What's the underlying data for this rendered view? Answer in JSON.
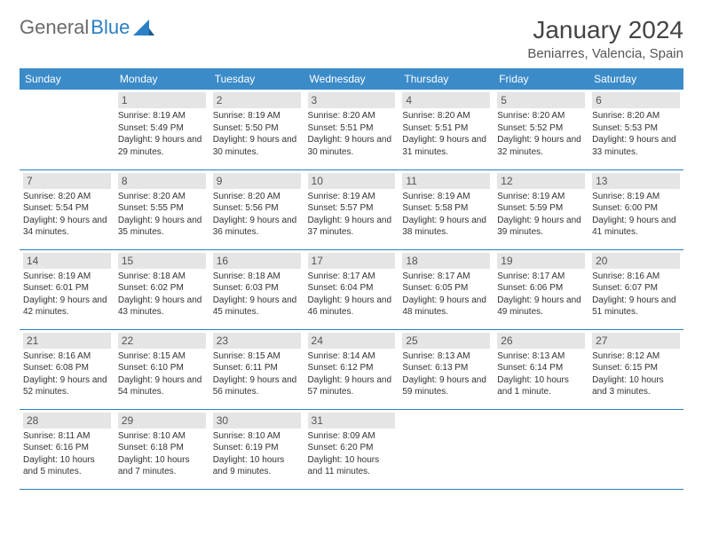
{
  "logo": {
    "text1": "General",
    "text2": "Blue"
  },
  "title": "January 2024",
  "location": "Beniarres, Valencia, Spain",
  "colors": {
    "header_bg": "#3b8bc9",
    "header_text": "#ffffff",
    "row_border": "#2b7fc4",
    "daynum_bg": "#e5e5e5",
    "logo_gray": "#6b6b6b",
    "logo_blue": "#2b7fc4"
  },
  "day_headers": [
    "Sunday",
    "Monday",
    "Tuesday",
    "Wednesday",
    "Thursday",
    "Friday",
    "Saturday"
  ],
  "weeks": [
    [
      null,
      {
        "n": "1",
        "sr": "8:19 AM",
        "ss": "5:49 PM",
        "dl": "9 hours and 29 minutes."
      },
      {
        "n": "2",
        "sr": "8:19 AM",
        "ss": "5:50 PM",
        "dl": "9 hours and 30 minutes."
      },
      {
        "n": "3",
        "sr": "8:20 AM",
        "ss": "5:51 PM",
        "dl": "9 hours and 30 minutes."
      },
      {
        "n": "4",
        "sr": "8:20 AM",
        "ss": "5:51 PM",
        "dl": "9 hours and 31 minutes."
      },
      {
        "n": "5",
        "sr": "8:20 AM",
        "ss": "5:52 PM",
        "dl": "9 hours and 32 minutes."
      },
      {
        "n": "6",
        "sr": "8:20 AM",
        "ss": "5:53 PM",
        "dl": "9 hours and 33 minutes."
      }
    ],
    [
      {
        "n": "7",
        "sr": "8:20 AM",
        "ss": "5:54 PM",
        "dl": "9 hours and 34 minutes."
      },
      {
        "n": "8",
        "sr": "8:20 AM",
        "ss": "5:55 PM",
        "dl": "9 hours and 35 minutes."
      },
      {
        "n": "9",
        "sr": "8:20 AM",
        "ss": "5:56 PM",
        "dl": "9 hours and 36 minutes."
      },
      {
        "n": "10",
        "sr": "8:19 AM",
        "ss": "5:57 PM",
        "dl": "9 hours and 37 minutes."
      },
      {
        "n": "11",
        "sr": "8:19 AM",
        "ss": "5:58 PM",
        "dl": "9 hours and 38 minutes."
      },
      {
        "n": "12",
        "sr": "8:19 AM",
        "ss": "5:59 PM",
        "dl": "9 hours and 39 minutes."
      },
      {
        "n": "13",
        "sr": "8:19 AM",
        "ss": "6:00 PM",
        "dl": "9 hours and 41 minutes."
      }
    ],
    [
      {
        "n": "14",
        "sr": "8:19 AM",
        "ss": "6:01 PM",
        "dl": "9 hours and 42 minutes."
      },
      {
        "n": "15",
        "sr": "8:18 AM",
        "ss": "6:02 PM",
        "dl": "9 hours and 43 minutes."
      },
      {
        "n": "16",
        "sr": "8:18 AM",
        "ss": "6:03 PM",
        "dl": "9 hours and 45 minutes."
      },
      {
        "n": "17",
        "sr": "8:17 AM",
        "ss": "6:04 PM",
        "dl": "9 hours and 46 minutes."
      },
      {
        "n": "18",
        "sr": "8:17 AM",
        "ss": "6:05 PM",
        "dl": "9 hours and 48 minutes."
      },
      {
        "n": "19",
        "sr": "8:17 AM",
        "ss": "6:06 PM",
        "dl": "9 hours and 49 minutes."
      },
      {
        "n": "20",
        "sr": "8:16 AM",
        "ss": "6:07 PM",
        "dl": "9 hours and 51 minutes."
      }
    ],
    [
      {
        "n": "21",
        "sr": "8:16 AM",
        "ss": "6:08 PM",
        "dl": "9 hours and 52 minutes."
      },
      {
        "n": "22",
        "sr": "8:15 AM",
        "ss": "6:10 PM",
        "dl": "9 hours and 54 minutes."
      },
      {
        "n": "23",
        "sr": "8:15 AM",
        "ss": "6:11 PM",
        "dl": "9 hours and 56 minutes."
      },
      {
        "n": "24",
        "sr": "8:14 AM",
        "ss": "6:12 PM",
        "dl": "9 hours and 57 minutes."
      },
      {
        "n": "25",
        "sr": "8:13 AM",
        "ss": "6:13 PM",
        "dl": "9 hours and 59 minutes."
      },
      {
        "n": "26",
        "sr": "8:13 AM",
        "ss": "6:14 PM",
        "dl": "10 hours and 1 minute."
      },
      {
        "n": "27",
        "sr": "8:12 AM",
        "ss": "6:15 PM",
        "dl": "10 hours and 3 minutes."
      }
    ],
    [
      {
        "n": "28",
        "sr": "8:11 AM",
        "ss": "6:16 PM",
        "dl": "10 hours and 5 minutes."
      },
      {
        "n": "29",
        "sr": "8:10 AM",
        "ss": "6:18 PM",
        "dl": "10 hours and 7 minutes."
      },
      {
        "n": "30",
        "sr": "8:10 AM",
        "ss": "6:19 PM",
        "dl": "10 hours and 9 minutes."
      },
      {
        "n": "31",
        "sr": "8:09 AM",
        "ss": "6:20 PM",
        "dl": "10 hours and 11 minutes."
      },
      null,
      null,
      null
    ]
  ],
  "labels": {
    "sunrise": "Sunrise:",
    "sunset": "Sunset:",
    "daylight": "Daylight:"
  }
}
